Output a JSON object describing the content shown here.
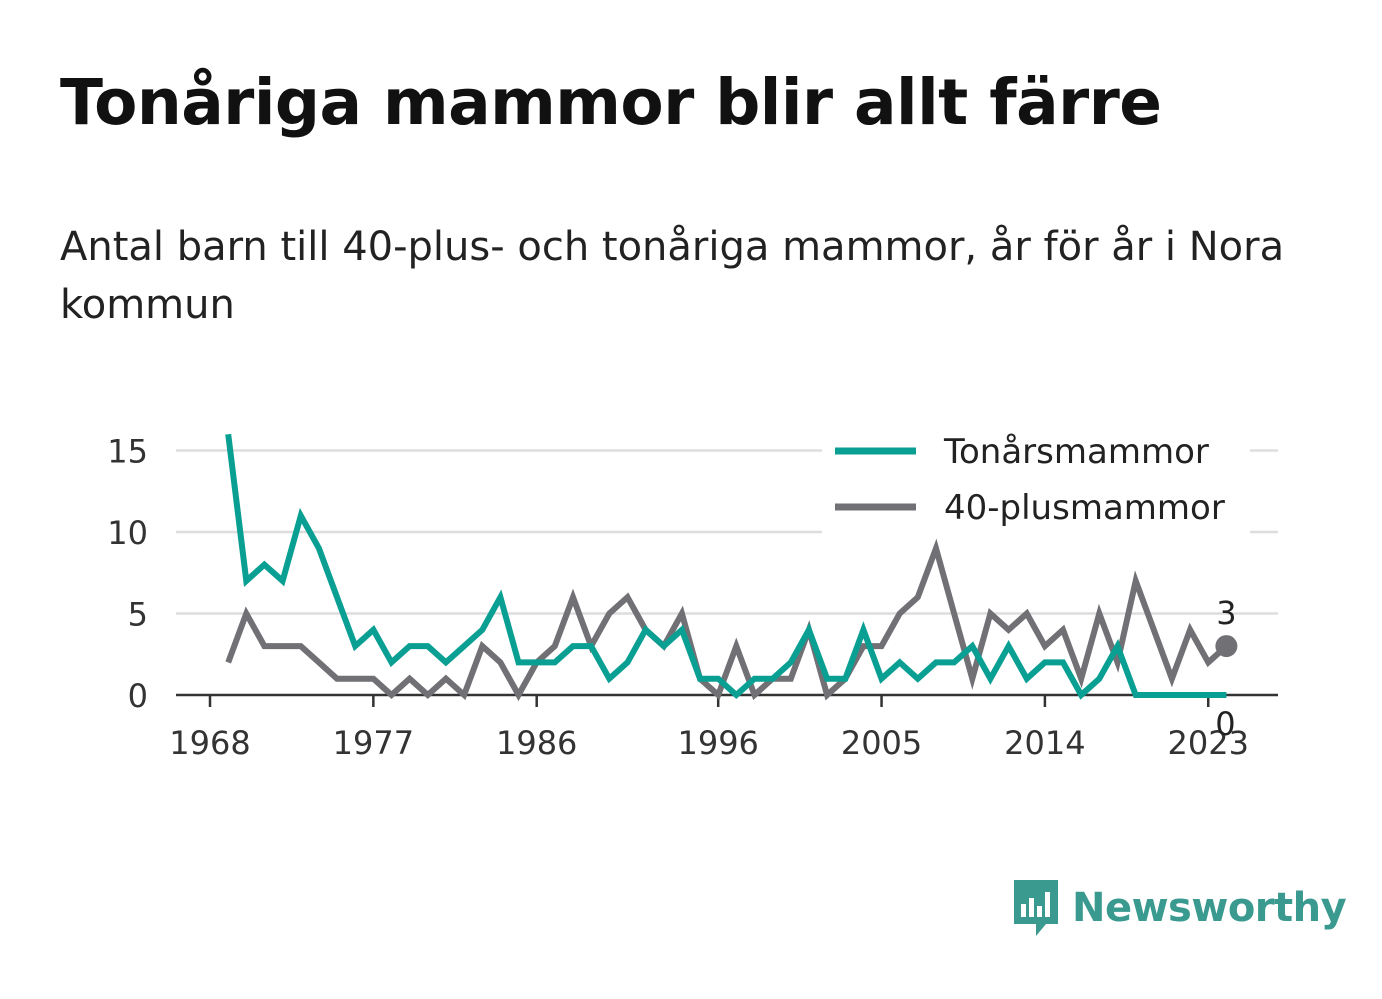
{
  "title": "Tonåriga mammor blir allt färre",
  "subtitle": "Antal barn till 40-plus- och tonåriga mammor, år för år i Nora kommun",
  "brand": {
    "name": "Newsworthy",
    "color": "#3a9a90"
  },
  "chart_data": {
    "type": "line",
    "x": [
      1969,
      1970,
      1971,
      1972,
      1973,
      1974,
      1975,
      1976,
      1977,
      1978,
      1979,
      1980,
      1981,
      1982,
      1983,
      1984,
      1985,
      1986,
      1987,
      1988,
      1989,
      1990,
      1991,
      1992,
      1993,
      1994,
      1995,
      1996,
      1997,
      1998,
      1999,
      2000,
      2001,
      2002,
      2003,
      2004,
      2005,
      2006,
      2007,
      2008,
      2009,
      2010,
      2011,
      2012,
      2013,
      2014,
      2015,
      2016,
      2017,
      2018,
      2019,
      2020,
      2021,
      2022,
      2023,
      2024
    ],
    "series": [
      {
        "name": "Tonårsmammor",
        "color": "#0a9f93",
        "values": [
          16,
          7,
          8,
          7,
          11,
          9,
          6,
          3,
          4,
          2,
          3,
          3,
          2,
          3,
          4,
          6,
          2,
          2,
          2,
          3,
          3,
          1,
          2,
          4,
          3,
          4,
          1,
          1,
          0,
          1,
          1,
          2,
          4,
          1,
          1,
          4,
          1,
          2,
          1,
          2,
          2,
          3,
          1,
          3,
          1,
          2,
          2,
          0,
          1,
          3,
          0,
          0,
          0,
          0,
          0,
          0
        ]
      },
      {
        "name": "40-plusmammor",
        "color": "#707075",
        "values": [
          2,
          5,
          3,
          3,
          3,
          2,
          1,
          1,
          1,
          0,
          1,
          0,
          1,
          0,
          3,
          2,
          0,
          2,
          3,
          6,
          3,
          5,
          6,
          4,
          3,
          5,
          1,
          0,
          3,
          0,
          1,
          1,
          4,
          0,
          1,
          3,
          3,
          5,
          6,
          9,
          5,
          1,
          5,
          4,
          5,
          3,
          4,
          1,
          5,
          2,
          7,
          4,
          1,
          4,
          2,
          3
        ]
      }
    ],
    "x_ticks": [
      "1968",
      "1977",
      "1986",
      "1996",
      "2005",
      "2014",
      "2023"
    ],
    "y_ticks": [
      "0",
      "5",
      "10",
      "15"
    ],
    "ylim": [
      0,
      16.5
    ],
    "end_labels": [
      "3",
      "0"
    ],
    "legend": [
      "Tonårsmammor",
      "40-plusmammor"
    ],
    "legend_position": "top-right",
    "grid": "horizontal"
  }
}
